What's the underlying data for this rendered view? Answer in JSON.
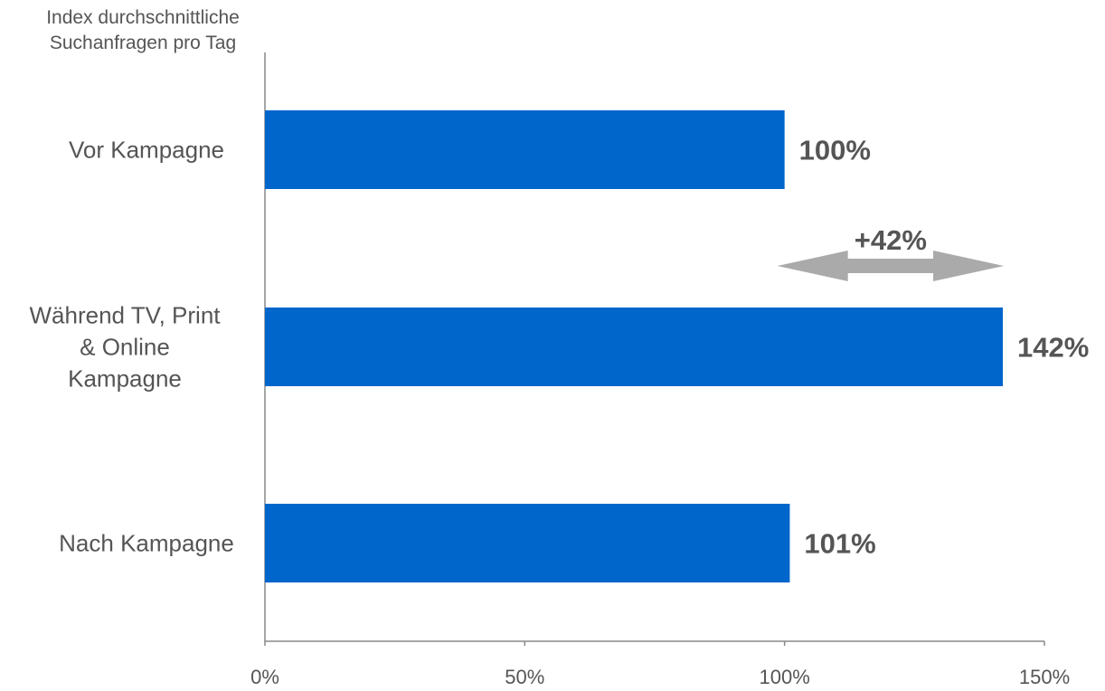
{
  "chart_data": {
    "type": "bar",
    "orientation": "horizontal",
    "ylabel": "Index durchschnittliche\nSuchanfragen pro Tag",
    "categories": [
      "Vor Kampagne",
      "Während TV, Print & Online Kampagne",
      "Nach Kampagne"
    ],
    "category_label_lines": [
      [
        "Vor Kampagne"
      ],
      [
        "Während TV, Print",
        "& Online",
        "Kampagne"
      ],
      [
        "Nach Kampagne"
      ]
    ],
    "values": [
      100,
      142,
      101
    ],
    "data_labels": [
      "100%",
      "142%",
      "101%"
    ],
    "xlim": [
      0,
      150
    ],
    "x_ticks": [
      0,
      50,
      100,
      150
    ],
    "x_tick_labels": [
      "0%",
      "50%",
      "100%",
      "150%"
    ],
    "grid": false,
    "bar_color": "#0066CC",
    "annotation": {
      "text": "+42%",
      "from": 100,
      "to": 142,
      "arrow_color": "#AAAAAA"
    }
  }
}
